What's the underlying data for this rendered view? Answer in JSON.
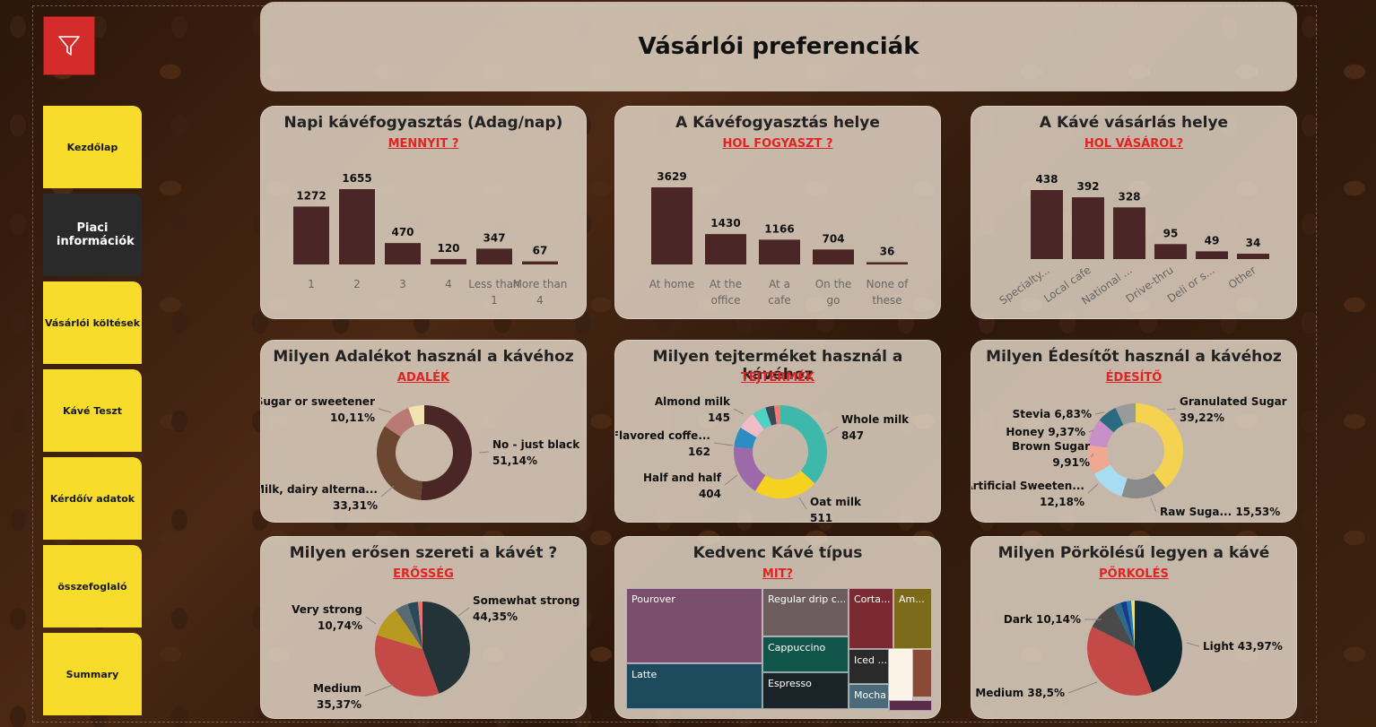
{
  "header": {
    "title": "Vásárlói preferenciák"
  },
  "nav": {
    "items": [
      {
        "label": "Kezdőlap"
      },
      {
        "label": "Piaci információk"
      },
      {
        "label": "Vásárlói költések"
      },
      {
        "label": "Kávé Teszt"
      },
      {
        "label": "Kérdőív adatok"
      },
      {
        "label": "összefoglaló"
      },
      {
        "label": "Summary"
      }
    ]
  },
  "cards": {
    "daily": {
      "title": "Napi kávéfogyasztás (Adag/nap)",
      "subtitle": "MENNYIT ?"
    },
    "where_drink": {
      "title": "A Kávéfogyasztás helye",
      "subtitle": "HOL FOGYASZT ?"
    },
    "where_buy": {
      "title": "A Kávé vásárlás helye",
      "subtitle": "HOL VÁSÁROL?"
    },
    "additives": {
      "title": "Milyen Adalékot használ a kávéhoz",
      "subtitle": "ADALÉK"
    },
    "dairy": {
      "title": "Milyen tejterméket használ a kávéhoz",
      "subtitle": "TEJTERMÉK"
    },
    "sweetener": {
      "title": "Milyen Édesítőt használ a kávéhoz",
      "subtitle": "ÉDESÍTŐ"
    },
    "strength": {
      "title": "Milyen erősen szereti a kávét ?",
      "subtitle": "ERŐSSÉG"
    },
    "favorite": {
      "title": "Kedvenc Kávé típus",
      "subtitle": "MIT?"
    },
    "roast": {
      "title": "Milyen Pörkölésű legyen a kávé",
      "subtitle": "PÖRKOLÉS"
    }
  },
  "chart_data": [
    {
      "type": "bar",
      "categories": [
        "1",
        "2",
        "3",
        "4",
        "Less than 1",
        "More than 4"
      ],
      "values": [
        1272,
        1655,
        470,
        120,
        347,
        67
      ]
    },
    {
      "type": "bar",
      "categories": [
        "At home",
        "At the office",
        "At a cafe",
        "On the go",
        "None of these"
      ],
      "values": [
        3629,
        1430,
        1166,
        704,
        36
      ]
    },
    {
      "type": "bar",
      "categories": [
        "Specialty...",
        "Local cafe",
        "National ...",
        "Drive-thru",
        "Deli or s...",
        "Other"
      ],
      "values": [
        438,
        392,
        328,
        95,
        49,
        34
      ]
    },
    {
      "type": "pie",
      "labels": [
        "No - just black",
        "Milk, dairy alterna...",
        "Sugar or sweetener",
        ""
      ],
      "display": [
        "51,14%",
        "33,31%",
        "10,11%",
        ""
      ],
      "values": [
        51.14,
        33.31,
        10.11,
        5.44
      ],
      "colors": [
        "#4a2626",
        "#6b4630",
        "#b87a72",
        "#f2e3b0"
      ]
    },
    {
      "type": "pie",
      "labels": [
        "Whole milk",
        "Oat milk",
        "Half and half",
        "Flavored coffe...",
        "Almond milk",
        "",
        "",
        ""
      ],
      "values": [
        847,
        511,
        404,
        162,
        145,
        110,
        70,
        50
      ],
      "colors": [
        "#3fb8ac",
        "#f5d21f",
        "#9e69a8",
        "#2d8cc4",
        "#f0bcc8",
        "#4fd1c5",
        "#3a4a52",
        "#f07a7a"
      ]
    },
    {
      "type": "pie",
      "labels": [
        "Granulated Sugar",
        "Raw Suga...",
        "Artificial Sweeten...",
        "Brown Sugar",
        "Honey",
        "Stevia",
        ""
      ],
      "display": [
        "39,22%",
        "15,53%",
        "12,18%",
        "9,91%",
        "9,37%",
        "6,83%",
        ""
      ],
      "values": [
        39.22,
        15.53,
        12.18,
        9.91,
        9.37,
        6.83,
        6.96
      ],
      "colors": [
        "#f5d350",
        "#8a8a8a",
        "#a8dcf0",
        "#f0a890",
        "#c890c8",
        "#2a6a80",
        "#9a9a9a"
      ]
    },
    {
      "type": "pie",
      "labels": [
        "Somewhat strong",
        "Medium",
        "Very strong",
        "",
        "",
        ""
      ],
      "display": [
        "44,35%",
        "35,37%",
        "10,74%",
        "",
        "",
        ""
      ],
      "values": [
        44.35,
        35.37,
        10.74,
        4.5,
        3.5,
        1.54
      ],
      "colors": [
        "#233338",
        "#c44a48",
        "#b89a20",
        "#5a6a72",
        "#2a4a5a",
        "#e07a70"
      ]
    },
    {
      "type": "pie",
      "labels": [
        "Light",
        "Medium",
        "Dark",
        "",
        "",
        "",
        ""
      ],
      "display": [
        "43,97%",
        "38,5%",
        "10,14%",
        "",
        "",
        "",
        ""
      ],
      "values": [
        43.97,
        38.5,
        10.14,
        2.6,
        2.0,
        1.6,
        1.19
      ],
      "colors": [
        "#0e2a33",
        "#c44a48",
        "#4a4a4a",
        "#2a6a8a",
        "#1a3a8a",
        "#1a7ab8",
        "#f0e070"
      ]
    },
    {
      "type": "treemap",
      "labels": [
        "Pourover",
        "Latte",
        "Regular drip c...",
        "Cappuccino",
        "Espresso",
        "Corta...",
        "Am...",
        "Iced ...",
        "Mocha",
        "",
        "",
        ""
      ],
      "colors": [
        "#7a4f6e",
        "#1d4a5c",
        "#6e5d5e",
        "#11544a",
        "#1a2428",
        "#7a2a30",
        "#7a6a1a",
        "#2a2a2a",
        "#4a6a7a",
        "#fbf3e6",
        "#8a4a38",
        "#5a2a4a"
      ]
    }
  ]
}
